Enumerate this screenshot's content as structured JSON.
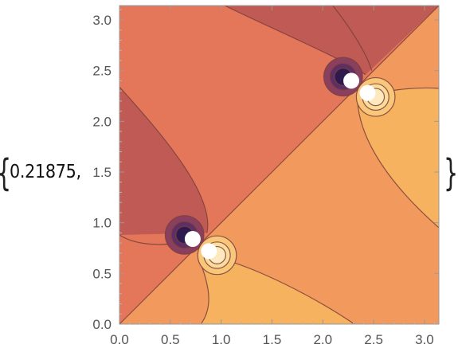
{
  "output": {
    "open_brace": "{",
    "leading_value": "0.21875,",
    "close_brace": "}"
  },
  "chart_data": {
    "type": "contour",
    "title": "",
    "xlabel": "",
    "ylabel": "",
    "xlim": [
      0,
      3.14159
    ],
    "ylim": [
      0,
      3.14159
    ],
    "x_ticks": [
      "0.0",
      "0.5",
      "1.0",
      "1.5",
      "2.0",
      "2.5",
      "3.0"
    ],
    "y_ticks": [
      "0.0",
      "0.5",
      "1.0",
      "1.5",
      "2.0",
      "2.5",
      "3.0"
    ],
    "grid": false,
    "legend": "none",
    "diagonal_line": {
      "from": [
        0,
        0
      ],
      "to": [
        3.14159,
        3.14159
      ]
    },
    "singularities": [
      {
        "negative_pole": [
          0.72,
          0.84
        ],
        "positive_pole": [
          0.88,
          0.72
        ]
      },
      {
        "negative_pole": [
          2.28,
          2.4
        ],
        "positive_pole": [
          2.44,
          2.28
        ]
      }
    ],
    "contour_fills": {
      "deep": "#2e1a4f",
      "purple": "#5e2f66",
      "plum": "#8a3f5e",
      "dark": "#c05a55",
      "mid": "#e4775a",
      "light": "#f29a5e",
      "lighter": "#f6b25e",
      "pale": "#f9c77a",
      "palest": "#fbdc9a",
      "hole": "#ffffff",
      "line": "#7a3f3a"
    }
  }
}
